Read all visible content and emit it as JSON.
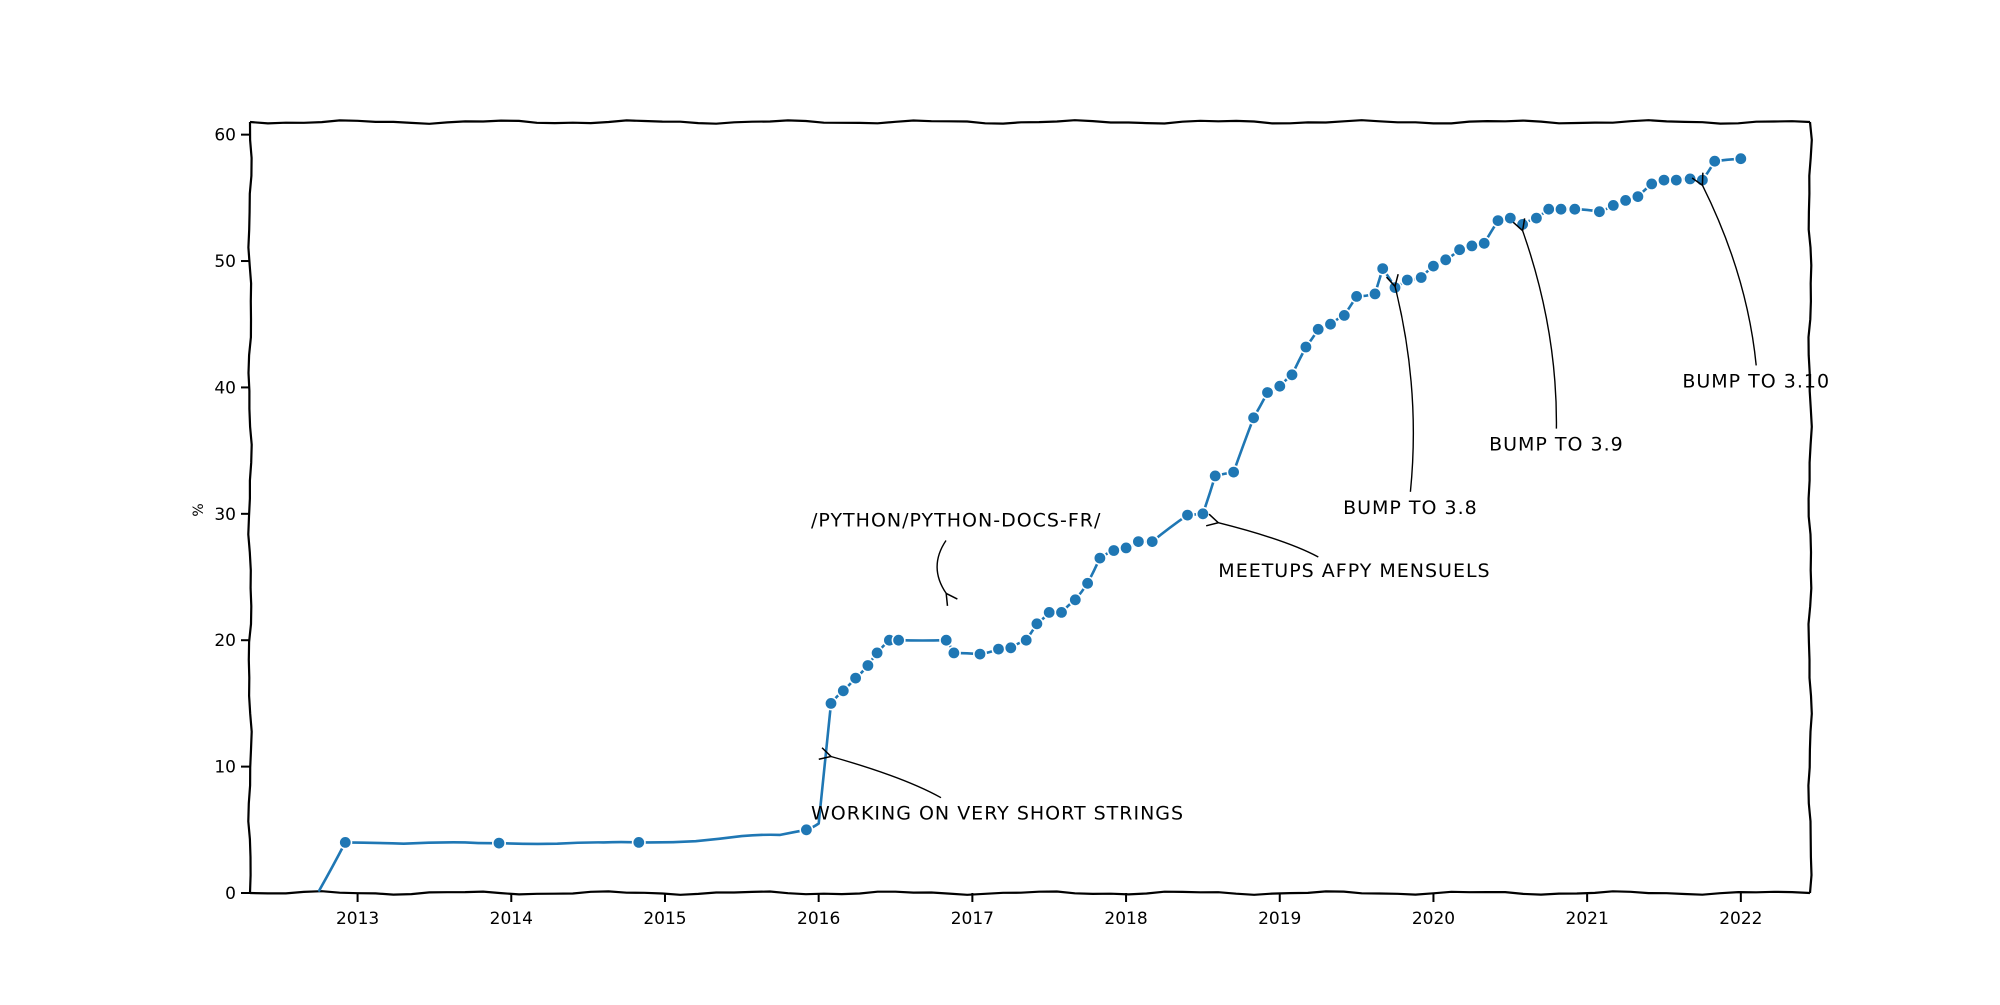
{
  "chart_data": {
    "type": "line",
    "title": "",
    "xlabel": "",
    "ylabel": "%",
    "xlim": [
      2012.3,
      2022.45
    ],
    "ylim": [
      0,
      61
    ],
    "xticks": [
      2013,
      2014,
      2015,
      2016,
      2017,
      2018,
      2019,
      2020,
      2021,
      2022
    ],
    "xtick_labels": [
      "2013",
      "2014",
      "2015",
      "2016",
      "2017",
      "2018",
      "2019",
      "2020",
      "2021",
      "2022"
    ],
    "yticks": [
      0,
      10,
      20,
      30,
      40,
      50,
      60
    ],
    "ytick_labels": [
      "0",
      "10",
      "20",
      "30",
      "40",
      "50",
      "60"
    ],
    "grid": false,
    "colors": {
      "line": "#1f77b4",
      "marker": "#1f77b4",
      "axis": "#000000"
    },
    "series": [
      {
        "x": [
          2012.75,
          2012.92,
          2013.3,
          2013.7,
          2013.92,
          2014.3,
          2014.6,
          2014.83,
          2015.2,
          2015.5,
          2015.75,
          2015.92,
          2016.0,
          2016.08,
          2016.16,
          2016.24,
          2016.32,
          2016.38,
          2016.46,
          2016.52,
          2016.83,
          2016.88,
          2017.05,
          2017.17,
          2017.25,
          2017.35,
          2017.42,
          2017.5,
          2017.58,
          2017.67,
          2017.75,
          2017.83,
          2017.92,
          2018.0,
          2018.08,
          2018.17,
          2018.4,
          2018.5,
          2018.58,
          2018.7,
          2018.83,
          2018.92,
          2019.0,
          2019.08,
          2019.17,
          2019.25,
          2019.33,
          2019.42,
          2019.5,
          2019.62,
          2019.67,
          2019.75,
          2019.83,
          2019.92,
          2020.0,
          2020.08,
          2020.17,
          2020.25,
          2020.33,
          2020.42,
          2020.5,
          2020.58,
          2020.67,
          2020.75,
          2020.83,
          2020.92,
          2021.08,
          2021.17,
          2021.25,
          2021.33,
          2021.42,
          2021.5,
          2021.58,
          2021.67,
          2021.75,
          2021.83,
          2022.0
        ],
        "y": [
          0.2,
          4.0,
          3.9,
          4.0,
          3.95,
          3.9,
          4.0,
          4.0,
          4.1,
          4.5,
          4.6,
          5.0,
          5.5,
          15.0,
          16.0,
          17.0,
          18.0,
          19.0,
          20.0,
          20.0,
          20.0,
          19.0,
          18.9,
          19.3,
          19.4,
          20.0,
          21.3,
          22.2,
          22.2,
          23.2,
          24.5,
          26.5,
          27.1,
          27.3,
          27.8,
          27.8,
          29.9,
          30.0,
          33.0,
          33.3,
          37.6,
          39.6,
          40.1,
          41.0,
          43.2,
          44.6,
          45.0,
          45.7,
          47.2,
          47.4,
          49.4,
          47.9,
          48.5,
          48.7,
          49.6,
          50.1,
          50.9,
          51.2,
          51.4,
          53.2,
          53.4,
          52.9,
          53.4,
          54.1,
          54.1,
          54.1,
          53.9,
          54.4,
          54.8,
          55.1,
          56.1,
          56.4,
          56.4,
          56.5,
          56.4,
          57.9,
          58.1
        ],
        "markers": [
          false,
          true,
          false,
          false,
          true,
          false,
          false,
          true,
          false,
          false,
          false,
          true,
          false,
          true,
          true,
          true,
          true,
          true,
          true,
          true,
          true,
          true,
          true,
          true,
          true,
          true,
          true,
          true,
          true,
          true,
          true,
          true,
          true,
          true,
          true,
          true,
          true,
          true,
          true,
          true,
          true,
          true,
          true,
          true,
          true,
          true,
          true,
          true,
          true,
          true,
          true,
          true,
          true,
          true,
          true,
          true,
          true,
          true,
          true,
          true,
          true,
          true,
          true,
          true,
          true,
          true,
          true,
          true,
          true,
          true,
          true,
          true,
          true,
          true,
          true,
          true,
          true
        ]
      }
    ],
    "annotations": [
      {
        "text": "WORKING ON VERY SHORT STRINGS",
        "point": [
          2016.08,
          10.8
        ],
        "text_pos": [
          2015.95,
          5.8
        ],
        "anchor": "start"
      },
      {
        "text": "/PYTHON/PYTHON-DOCS-FR/",
        "point": [
          2016.83,
          23.7
        ],
        "text_pos": [
          2015.95,
          29.0
        ],
        "anchor": "start"
      },
      {
        "text": "MEETUPS AFPY MENSUELS",
        "point": [
          2018.6,
          29.3
        ],
        "text_pos": [
          2018.6,
          25.0
        ],
        "anchor": "start"
      },
      {
        "text": "BUMP TO 3.8",
        "point": [
          2019.75,
          48.0
        ],
        "text_pos": [
          2019.85,
          30.0
        ],
        "anchor": "middle"
      },
      {
        "text": "BUMP TO 3.9",
        "point": [
          2020.58,
          52.4
        ],
        "text_pos": [
          2020.8,
          35.0
        ],
        "anchor": "middle"
      },
      {
        "text": "BUMP TO 3.10",
        "point": [
          2021.75,
          56.0
        ],
        "text_pos": [
          2022.1,
          40.0
        ],
        "anchor": "middle"
      }
    ]
  }
}
